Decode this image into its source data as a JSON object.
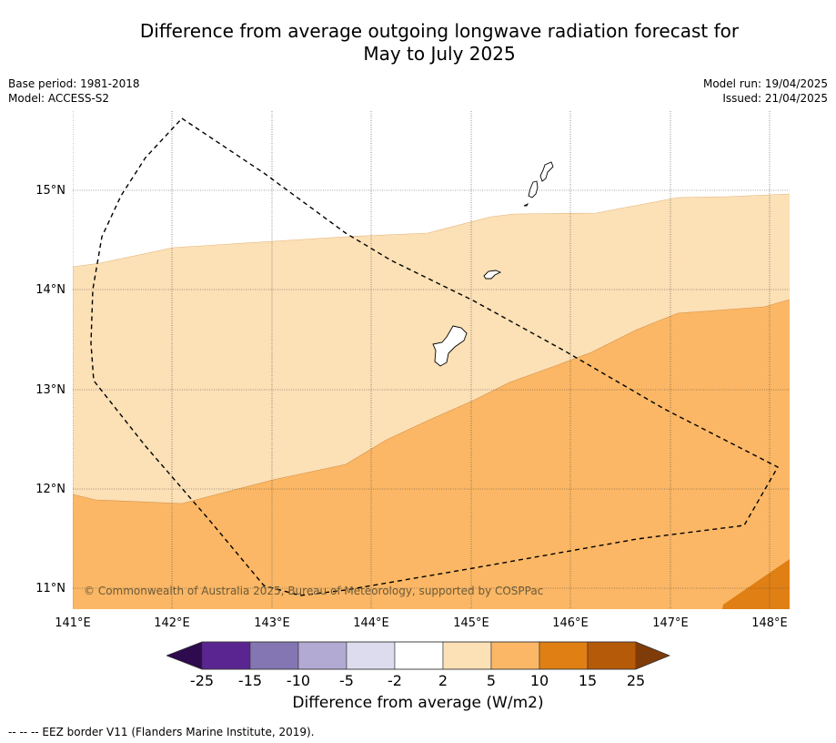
{
  "title": {
    "line1": "Difference from average outgoing longwave radiation forecast for",
    "line2": "May to July 2025"
  },
  "meta_left": {
    "base_period": "Base period: 1981-2018",
    "model": "Model: ACCESS-S2"
  },
  "meta_right": {
    "model_run": "Model run: 19/04/2025",
    "issued": "Issued: 21/04/2025"
  },
  "map": {
    "lat_labels": [
      "15°N",
      "14°N",
      "13°N",
      "12°N",
      "11°N"
    ],
    "lon_labels": [
      "141°E",
      "142°E",
      "143°E",
      "144°E",
      "145°E",
      "146°E",
      "147°E",
      "148°E"
    ],
    "copyright": "© Commonwealth of Australia 2025, Bureau of Meteorology, supported by COSPPac",
    "fill_colors": {
      "2_to_5": "#fce0b6",
      "5_to_10": "#fbb765",
      "10_to_15": "#e07f14"
    }
  },
  "colorbar": {
    "ticks": [
      "-25",
      "-15",
      "-10",
      "-5",
      "-2",
      "2",
      "5",
      "10",
      "15",
      "25"
    ],
    "colors": [
      "#2e0a4e",
      "#5a2590",
      "#8476b3",
      "#b2aad3",
      "#dcdcee",
      "#ffffff",
      "#fce0b6",
      "#fbb765",
      "#e07f14",
      "#b55a08",
      "#7f3b08"
    ],
    "title": "Difference from average (W/m2)"
  },
  "footnote": "--  --  -- EEZ border V11 (Flanders Marine Institute, 2019)."
}
